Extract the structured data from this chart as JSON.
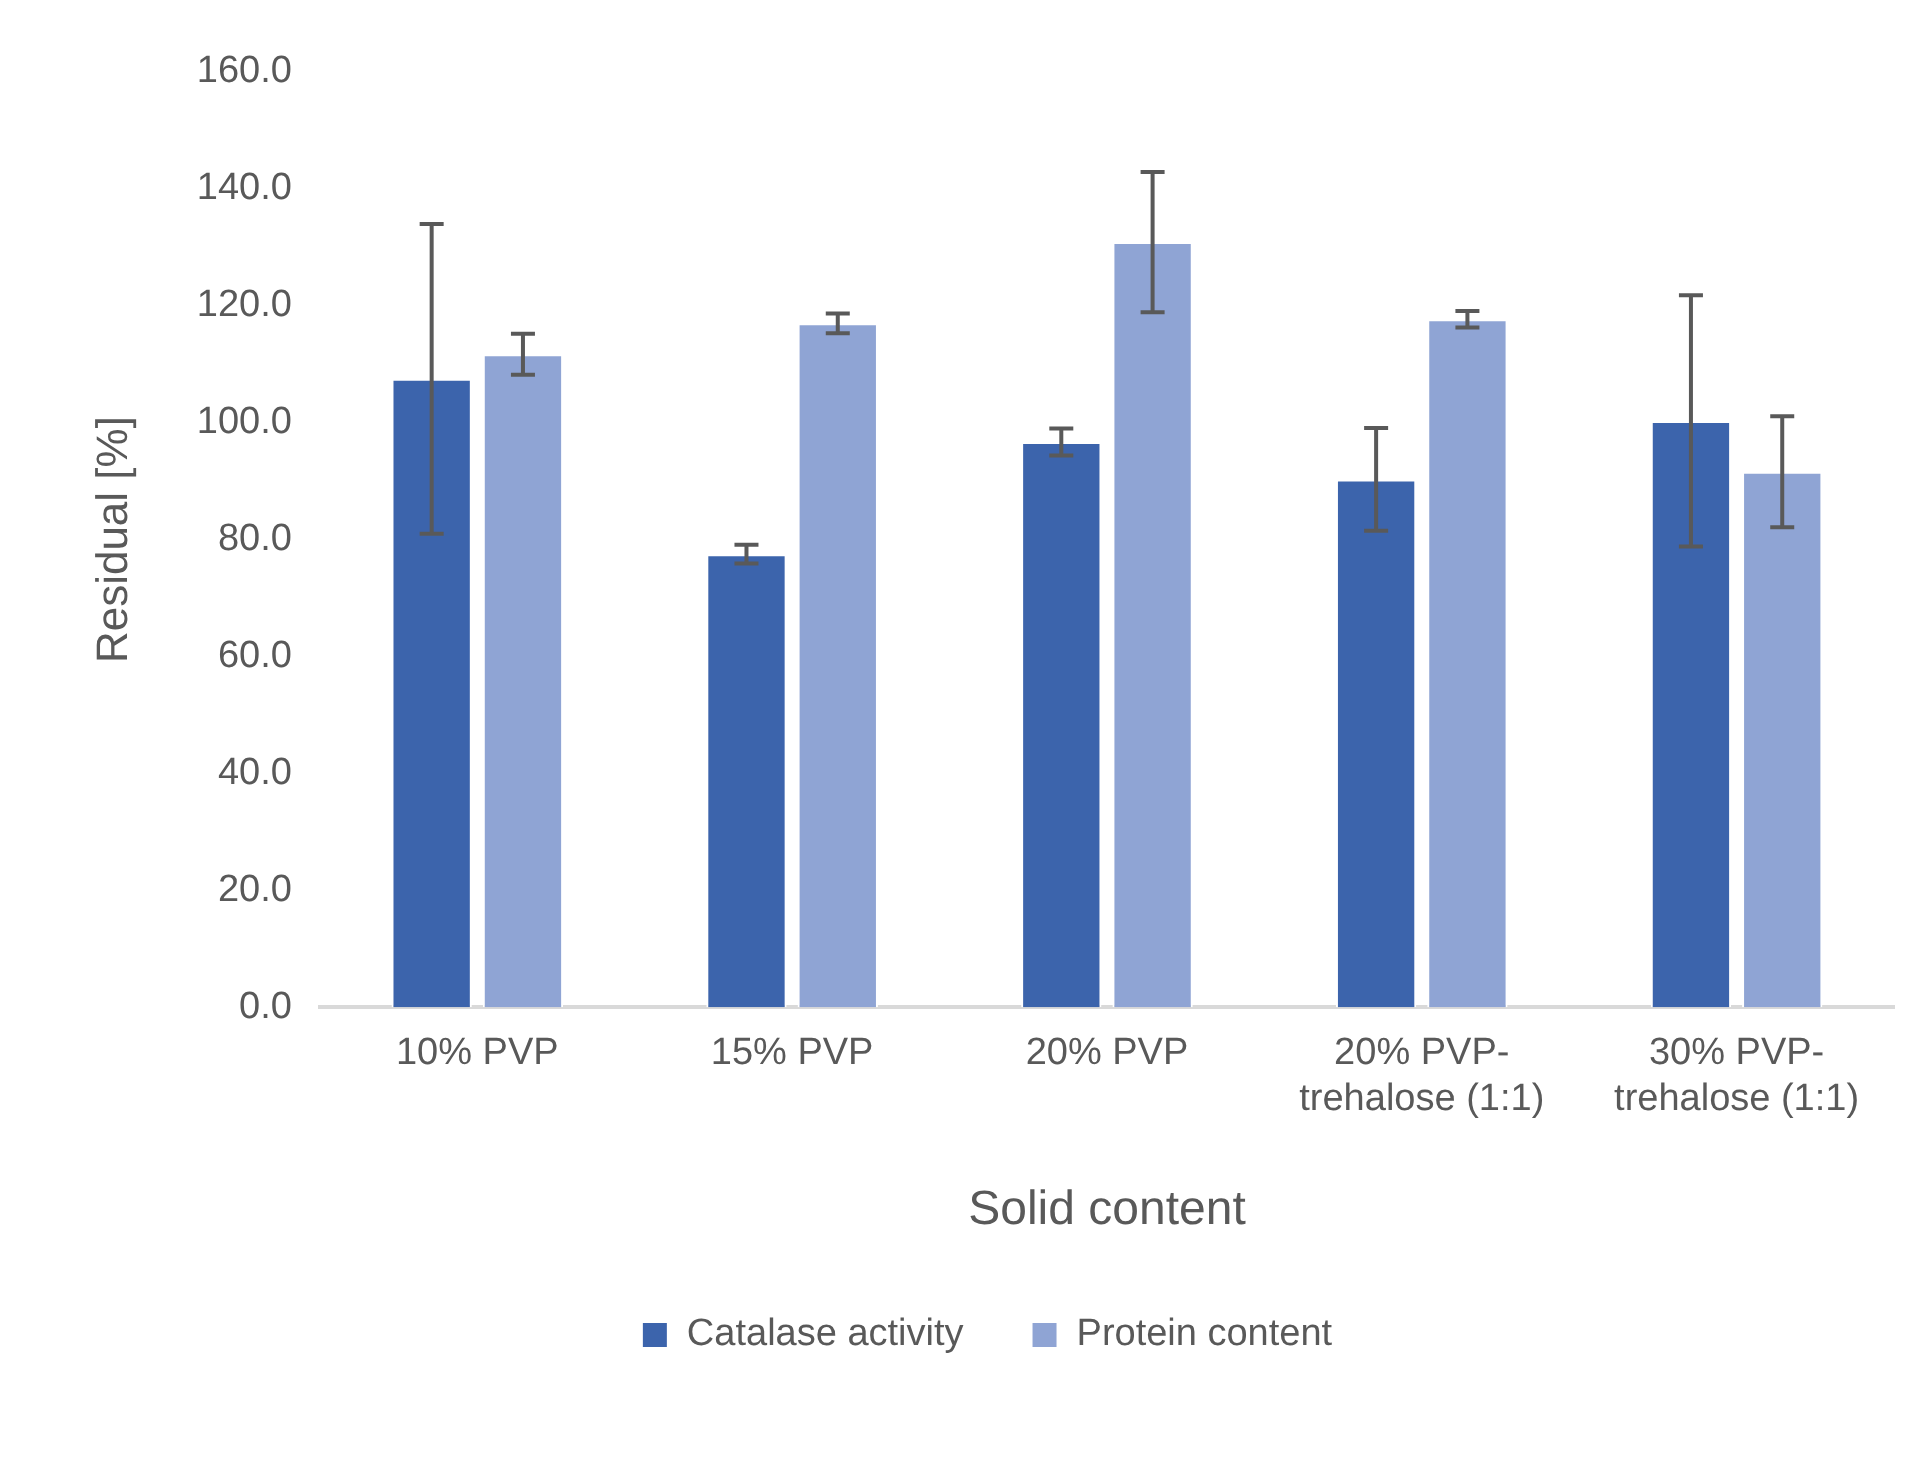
{
  "chart_data": {
    "type": "bar",
    "xlabel": "Solid content",
    "ylabel": "Residual [%]",
    "categories": [
      "10% PVP",
      "15% PVP",
      "20% PVP",
      "20% PVP-trehalose (1:1)",
      "30% PVP-trehalose (1:1)"
    ],
    "series": [
      {
        "name": "Catalase activity",
        "color": "#3c64ac",
        "values": [
          107.5,
          77.5,
          96.7,
          90.3,
          100.3
        ],
        "errors": [
          26.5,
          1.6,
          2.3,
          8.8,
          21.5
        ]
      },
      {
        "name": "Protein content",
        "color": "#8fa4d4",
        "values": [
          111.7,
          117.0,
          130.9,
          117.7,
          91.6
        ],
        "errors": [
          3.5,
          1.7,
          12.0,
          1.4,
          9.5
        ]
      }
    ],
    "ylim": [
      0,
      160
    ],
    "yticks": [
      {
        "value": 0,
        "label": "0.0"
      },
      {
        "value": 20,
        "label": "20.0"
      },
      {
        "value": 40,
        "label": "40.0"
      },
      {
        "value": 60,
        "label": "60.0"
      },
      {
        "value": 80,
        "label": "80.0"
      },
      {
        "value": 100,
        "label": "100.0"
      },
      {
        "value": 120,
        "label": "120.0"
      },
      {
        "value": 140,
        "label": "140.0"
      },
      {
        "value": 160,
        "label": "160.0"
      }
    ],
    "grid": false,
    "legend": "bottom"
  }
}
